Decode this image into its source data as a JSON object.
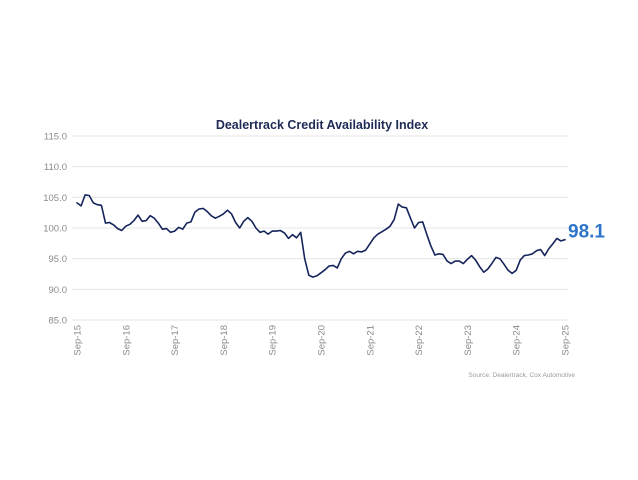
{
  "chart_data": {
    "type": "line",
    "title": "Dealertrack Credit Availability Index",
    "xlabel": "",
    "ylabel": "",
    "ylim": [
      85.0,
      115.0
    ],
    "yticks": [
      "115.0",
      "110.0",
      "105.0",
      "100.0",
      "95.0",
      "90.0",
      "85.0"
    ],
    "ytick_values": [
      115,
      110,
      105,
      100,
      95,
      90,
      85
    ],
    "xticks": [
      "Sep-15",
      "Sep-16",
      "Sep-17",
      "Sep-18",
      "Sep-19",
      "Sep-20",
      "Sep-21",
      "Sep-22",
      "Sep-23",
      "Sep-24",
      "Sep-25"
    ],
    "x_start": "Sep-15",
    "x_end": "Sep-25",
    "x_frequency": "monthly",
    "grid": true,
    "legend": "none",
    "series": [
      {
        "name": "Dealertrack Credit Availability Index",
        "color": "#16245c",
        "values": [
          104.1,
          103.6,
          105.4,
          105.3,
          104.1,
          103.8,
          103.7,
          100.8,
          100.9,
          100.5,
          99.9,
          99.6,
          100.3,
          100.6,
          101.2,
          102.1,
          101.1,
          101.2,
          102.0,
          101.6,
          100.8,
          99.8,
          99.9,
          99.3,
          99.5,
          100.1,
          99.8,
          100.8,
          101.0,
          102.6,
          103.1,
          103.2,
          102.7,
          102.0,
          101.6,
          101.9,
          102.3,
          102.9,
          102.3,
          100.9,
          100.0,
          101.1,
          101.7,
          101.1,
          100.0,
          99.3,
          99.5,
          99.0,
          99.5,
          99.5,
          99.6,
          99.2,
          98.3,
          98.9,
          98.4,
          99.3,
          95.0,
          92.3,
          92.0,
          92.2,
          92.7,
          93.2,
          93.8,
          93.9,
          93.5,
          95.0,
          95.9,
          96.2,
          95.8,
          96.2,
          96.1,
          96.4,
          97.4,
          98.4,
          99.0,
          99.4,
          99.8,
          100.3,
          101.4,
          103.9,
          103.4,
          103.3,
          101.6,
          100.0,
          100.9,
          101.0,
          99.0,
          97.1,
          95.6,
          95.8,
          95.7,
          94.6,
          94.2,
          94.6,
          94.6,
          94.2,
          94.9,
          95.5,
          94.8,
          93.7,
          92.8,
          93.3,
          94.2,
          95.2,
          95.0,
          94.1,
          93.1,
          92.6,
          93.1,
          94.8,
          95.5,
          95.6,
          95.8,
          96.3,
          96.5,
          95.5,
          96.6,
          97.4,
          98.3,
          97.9,
          98.1
        ]
      }
    ],
    "annotations": [
      {
        "text": "98.1",
        "target": "last-point",
        "color": "#2e75c9"
      }
    ],
    "source": "Source: Dealertrack, Cox Automotive"
  }
}
